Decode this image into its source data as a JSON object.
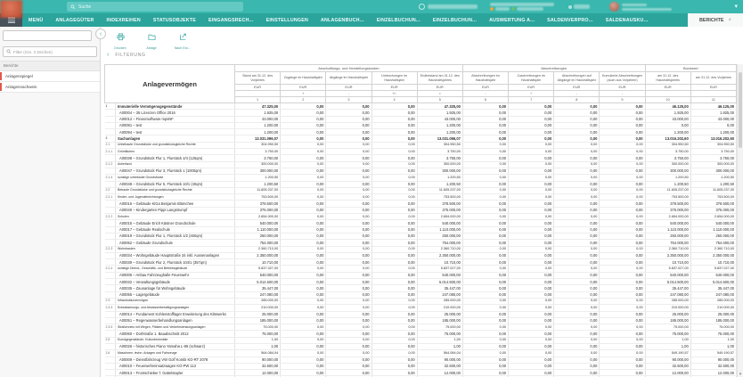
{
  "topbar": {
    "search_placeholder": "Suche",
    "user_menu_chevron": "▾"
  },
  "menubar": {
    "items": [
      "MENÜ",
      "ANLAGEGÜTER",
      "INDEXREIHEN",
      "STATUSOBJEKTE",
      "EINGANGSRECH...",
      "EINSTELLUNGEN",
      "ANLAGENBUCH...",
      "EINZELBUCHUN...",
      "EINZELBUCHUN...",
      "AUSWERTUNG A...",
      "SALDENVERPRO...",
      "SALDENAUSKU..."
    ],
    "active_tab": {
      "label": "BERICHTE",
      "close_glyph": "×"
    }
  },
  "sidebar": {
    "filter_placeholder": "Filter (min. 3 Zeichen)",
    "section_label": "Berichte",
    "items": [
      "Anlagenspiegel",
      "Anlagennachweis"
    ]
  },
  "toolbar": {
    "buttons": [
      {
        "label": "Drucken",
        "icon": "printer-icon"
      },
      {
        "label": "Ablage",
        "icon": "folder-icon"
      },
      {
        "label": "Nach Exc...",
        "icon": "excel-export-icon"
      }
    ]
  },
  "filter_panel": {
    "label": "FILTERUNG",
    "chevron": "›"
  },
  "report": {
    "title": "Anlagevermögen",
    "unit": "EUR",
    "zero_value": "0,00",
    "value_layout": {
      "stand_cols": [
        0,
        4
      ],
      "buchwert_cols": [
        9,
        10
      ]
    },
    "groups": [
      {
        "label": "Anschaffungs- und Herstellungskosten",
        "span": 5
      },
      {
        "label": "Abschreibungen",
        "span": 4
      },
      {
        "label": "Buchwert",
        "span": 2
      }
    ],
    "columns": [
      {
        "title": "Stand am 31.12. des Vorjahres",
        "sign": "",
        "no": "1"
      },
      {
        "title": "Zugänge im Haushaltsjahr",
        "sign": "+",
        "no": "2"
      },
      {
        "title": "Abgänge im Haushaltsjahr",
        "sign": "-",
        "no": "3"
      },
      {
        "title": "Umbuchungen im Haushaltsjahr",
        "sign": "+/-",
        "no": "4"
      },
      {
        "title": "Endbestand am 31.12. des Haushaltsjahres",
        "sign": "=",
        "no": "5"
      },
      {
        "title": "Abschreibungen im Haushaltsjahr",
        "sign": "-",
        "no": "6"
      },
      {
        "title": "Zuschreibungen im Haushaltsjahr",
        "sign": "+",
        "no": "7"
      },
      {
        "title": "Abschreibungen auf Abgänge im Haushaltsjahr",
        "sign": "-",
        "no": "8"
      },
      {
        "title": "Kumulierte Abschreibungen (auch aus Vorjahren)",
        "sign": "-",
        "no": "9"
      },
      {
        "title": "am 31.12. des Haushaltsjahres",
        "sign": "",
        "no": "10"
      },
      {
        "title": "am 31.12. des Vorjahres",
        "sign": "",
        "no": "11"
      }
    ],
    "rows": [
      {
        "n": "1",
        "t": "h1",
        "l": "Immaterielle Vermögensgegenstände",
        "s": "47.325,00",
        "b": "46.125,00"
      },
      {
        "n": "",
        "t": "item",
        "l": "A00004 – 35 Lizenzen Office 2016",
        "s": "1.925,00",
        "b": "1.925,00"
      },
      {
        "n": "",
        "t": "item",
        "l": "A00012 – Finanzsoftware mpsNF",
        "s": "43.000,00",
        "b": "43.000,00"
      },
      {
        "n": "",
        "t": "item",
        "l": "A00081 – test",
        "s": "1.200,00",
        "b": "0,00"
      },
      {
        "n": "",
        "t": "item",
        "l": "A00094 – test",
        "s": "1.200,00",
        "b": "1.200,00"
      },
      {
        "n": "2",
        "t": "h1",
        "l": "Sachanlagen",
        "s": "13.031.096,07",
        "b": "13.016.202,60"
      },
      {
        "n": "2.1",
        "t": "cat",
        "l": "Unbebaute Grundstücke und grundstücksgleiche Rechte",
        "s": "304.950,50",
        "b": "304.950,50"
      },
      {
        "n": "2.1.1",
        "t": "cat",
        "l": "Grünflächen",
        "s": "3.750,00",
        "b": "3.750,00"
      },
      {
        "n": "",
        "t": "item",
        "l": "A00038 – Grundstück Flur 1, Flurstück 2/4 (125qm)",
        "s": "3.750,00",
        "b": "3.750,00"
      },
      {
        "n": "2.1.2",
        "t": "cat",
        "l": "Ackerland",
        "s": "300.000,00",
        "b": "300.000,00"
      },
      {
        "n": "",
        "t": "item",
        "l": "A00047 – Grundstück Flur 3, Flurstück 1 (1000qm)",
        "s": "300.000,00",
        "b": "300.000,00"
      },
      {
        "n": "2.1.4",
        "t": "cat",
        "l": "sonstige unbebaute Grundstücke",
        "s": "1.200,50",
        "b": "1.200,50"
      },
      {
        "n": "",
        "t": "item",
        "l": "A00048 – Grundstück Flur 5, Flurstück 10/1 (40qm)",
        "s": "1.200,50",
        "b": "1.200,50"
      },
      {
        "n": "2.2",
        "t": "cat",
        "l": "Bebaute Grundstücke und grundstücksgleiche Rechte",
        "s": "11.605.237,00",
        "b": "11.605.237,00"
      },
      {
        "n": "2.2.1",
        "t": "cat",
        "l": "Kinder- und Jugendeinrichtungen",
        "s": "753.500,00",
        "b": "753.500,00"
      },
      {
        "n": "",
        "t": "item",
        "l": "A00016 – Gebäude KiGa Benjamin Blümchen",
        "s": "378.500,00",
        "b": "378.500,00"
      },
      {
        "n": "",
        "t": "item",
        "l": "A00040 – Kindergarten Pippi Langstrumpf",
        "s": "375.000,00",
        "b": "375.000,00"
      },
      {
        "n": "2.2.2",
        "t": "cat",
        "l": "Schulen",
        "s": "2.654.000,00",
        "b": "2.654.000,00"
      },
      {
        "n": "",
        "t": "item",
        "l": "A00015 – Gebäude Erich Kästner Grundschule",
        "s": "540.000,00",
        "b": "540.000,00"
      },
      {
        "n": "",
        "t": "item",
        "l": "A00017 – Gebäude Realschule",
        "s": "1.110.000,00",
        "b": "1.110.000,00"
      },
      {
        "n": "",
        "t": "item",
        "l": "A00019 – Grundstück Flur 1, Flurstück 1/2 (450qm)",
        "s": "250.000,00",
        "b": "250.000,00"
      },
      {
        "n": "",
        "t": "item",
        "l": "A00052 – Gebäude Grundschule",
        "s": "754.000,00",
        "b": "754.000,00"
      },
      {
        "n": "2.2.3",
        "t": "cat",
        "l": "Wohnbauten",
        "s": "2.360.710,00",
        "b": "2.360.710,00"
      },
      {
        "n": "",
        "t": "item",
        "l": "A00034 – Wohngebäude Hauptstraße 34 inkl. Aussenanlagen",
        "s": "2.350.000,00",
        "b": "2.350.000,00"
      },
      {
        "n": "",
        "t": "item",
        "l": "A00039 – Grundstück Flur 2, Flurstück 104/1 (357qm)",
        "s": "10.710,00",
        "b": "10.710,00"
      },
      {
        "n": "2.2.4",
        "t": "cat",
        "l": "sonstige Dienst-, Geschäfts- und Betriebsgebäude",
        "s": "5.837.027,00",
        "b": "5.837.027,00"
      },
      {
        "n": "",
        "t": "item",
        "l": "A00005 – Anbau Fahrzeughalle Feuerwehr",
        "s": "540.000,00",
        "b": "540.000,00"
      },
      {
        "n": "",
        "t": "item",
        "l": "A00032 – Verwaltungsgebäude",
        "s": "5.014.500,00",
        "b": "5.014.500,00"
      },
      {
        "n": "",
        "t": "item",
        "l": "A00035 – Zaunanlage für Wohngebäude",
        "s": "35.447,00",
        "b": "35.447,00"
      },
      {
        "n": "",
        "t": "item",
        "l": "A00055 – Lagergebäude",
        "s": "247.080,00",
        "b": "247.080,00"
      },
      {
        "n": "2.3",
        "t": "cat",
        "l": "Infrastrukturvermögen",
        "s": "285.000,00",
        "b": "285.000,00"
      },
      {
        "n": "2.3.4",
        "t": "cat",
        "l": "Entwässerungs- und Abwasserbeseitigungsanlagen",
        "s": "210.000,00",
        "b": "210.000,00"
      },
      {
        "n": "",
        "t": "item",
        "l": "A00014 – Fundament Kohlenstofflager Erweiterung des Klärwerks",
        "s": "25.000,00",
        "b": "25.000,00"
      },
      {
        "n": "",
        "t": "item",
        "l": "A00051 – Regenwasserbehandlungsanlagen",
        "s": "185.000,00",
        "b": "185.000,00"
      },
      {
        "n": "2.3.5",
        "t": "cat",
        "l": "Straßennetz mit Wegen, Plätzen und Verkehrslenkungsanlagen",
        "s": "75.000,00",
        "b": "75.000,00"
      },
      {
        "n": "",
        "t": "item",
        "l": "A00060 – Dorfstraße 1. Bauabschnitt 2012",
        "s": "75.000,00",
        "b": "75.000,00"
      },
      {
        "n": "2.5",
        "t": "cat",
        "l": "Kunstgegenstände, Kulturdenkmäler",
        "s": "1,00",
        "b": "1,00"
      },
      {
        "n": "",
        "t": "item",
        "l": "A00026 – historisches Piano Yamaha L-85 (schwarz)",
        "s": "1,00",
        "b": "1,00"
      },
      {
        "n": "2.6",
        "t": "cat",
        "l": "Maschinen, techn. Anlagen und Fahrzeuge",
        "s": "564.084,04",
        "b": "549.190,57"
      },
      {
        "n": "",
        "t": "item",
        "l": "A00009 – Dienstfahrzeug VW Golf Kombi KO-RT 2078",
        "s": "90.000,00",
        "b": "90.000,00"
      },
      {
        "n": "",
        "t": "item",
        "l": "A00010 – Feuerwehreinsatzwagen KO-PW 113",
        "s": "32.600,00",
        "b": "32.600,00"
      },
      {
        "n": "",
        "t": "item",
        "l": "A00013 – Frontschieber f. Gabelstapler",
        "s": "12.000,00",
        "b": "12.000,00"
      },
      {
        "n": "",
        "t": "item",
        "l": "A00025 – Lanzenaufsatz",
        "s": "151.780,00",
        "b": "151.780,00"
      }
    ]
  },
  "colors": {
    "topbar": "#3ab7ae",
    "menubar": "#2ba49c",
    "accent_teal": "#3ab7ae",
    "status_orange": "#e8a33d",
    "status_green": "#6abf69",
    "item_indicator_red": "#e2574b"
  }
}
